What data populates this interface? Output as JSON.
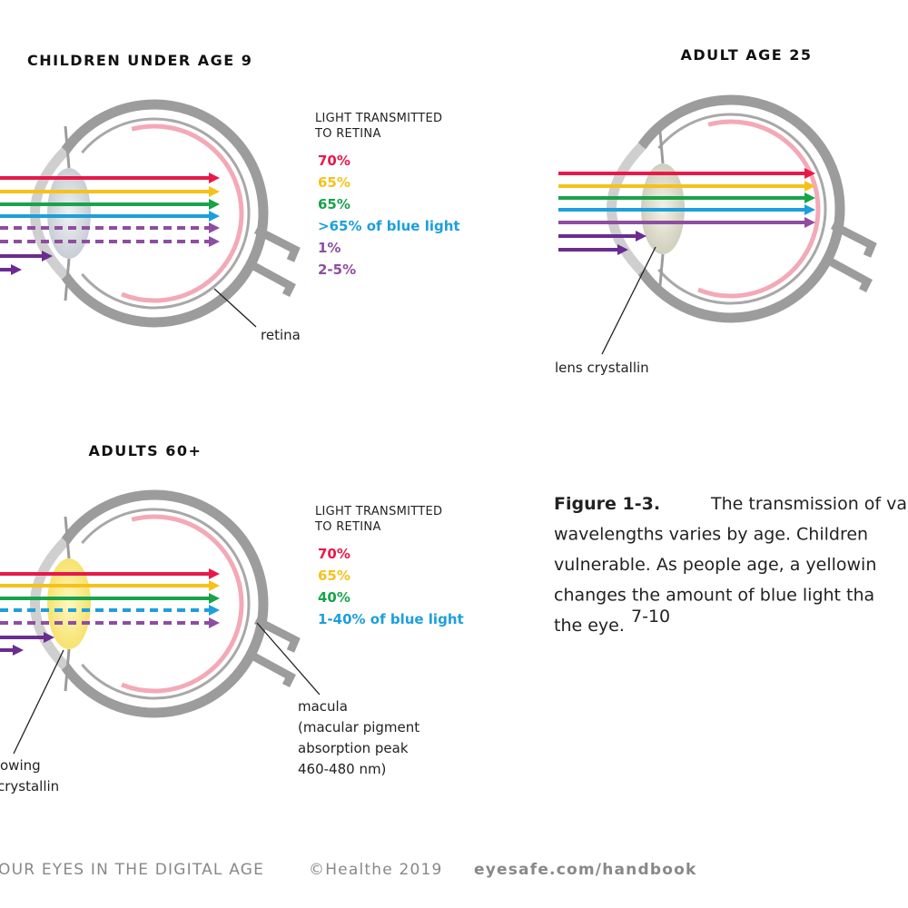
{
  "panels": [
    {
      "title": "CHILDREN UNDER AGE 9",
      "legend_title": [
        "LIGHT TRANSMITTED",
        "TO RETINA"
      ],
      "legend": [
        "70%",
        "65%",
        "65%",
        ">65% of blue light",
        "1%",
        "2-5%"
      ],
      "label": [
        "retina"
      ]
    },
    {
      "title": "ADULT AGE 25",
      "label": [
        "lens crystallin"
      ]
    },
    {
      "title": "ADULTS 60+",
      "legend_title": [
        "LIGHT TRANSMITTED",
        "TO RETINA"
      ],
      "legend": [
        "70%",
        "65%",
        "40%",
        "1-40% of blue light"
      ],
      "label": [
        "macula",
        "(macular pigment",
        "absorption peak",
        "460-480 nm)"
      ],
      "lens_label": [
        "owing",
        "crystallin"
      ]
    }
  ],
  "caption": {
    "lead": "Figure 1-3.",
    "lines": [
      "The transmission of vario",
      "wavelengths varies by age. Children",
      "vulnerable. As people age, a yellowin",
      "changes the amount of blue light tha",
      "the eye."
    ],
    "ref": "7-10"
  },
  "footer": [
    "OUR EYES IN THE DIGITAL AGE",
    "©Healthe 2019",
    "eyesafe.com/handbook"
  ]
}
